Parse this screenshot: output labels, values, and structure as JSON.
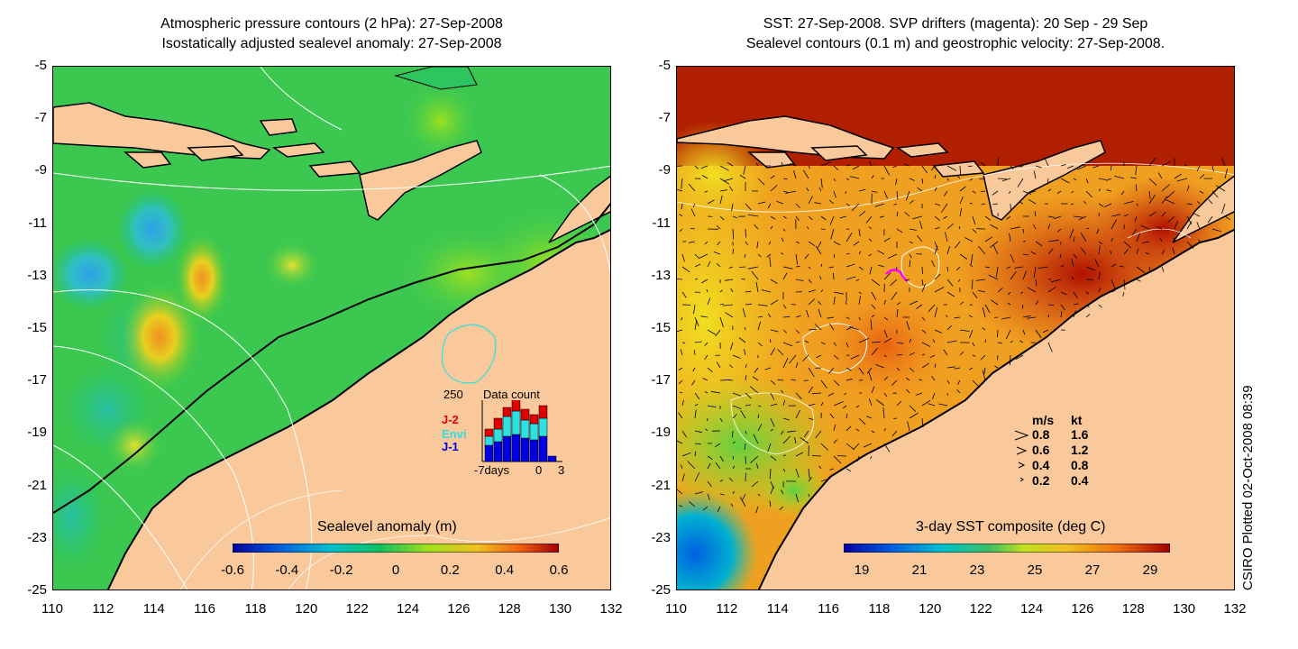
{
  "left_panel": {
    "title_line1": "Atmospheric pressure contours (2 hPa): 27-Sep-2008",
    "title_line2": "Isostatically adjusted sealevel anomaly: 27-Sep-2008",
    "colorbar_label": "Sealevel anomaly (m)",
    "colorbar_ticks": [
      "-0.6",
      "-0.4",
      "-0.2",
      "0",
      "0.2",
      "0.4",
      "0.6"
    ],
    "inset": {
      "top_value": "250",
      "title": "Data count",
      "x_left": "-7days",
      "x_mid": "0",
      "x_right": "3",
      "legend": [
        {
          "label": "J-2",
          "color": "#e00000"
        },
        {
          "label": "Envi",
          "color": "#30e0e0"
        },
        {
          "label": "J-1",
          "color": "#0000e0"
        }
      ]
    }
  },
  "right_panel": {
    "title_line1": "SST: 27-Sep-2008. SVP drifters (magenta): 20 Sep - 29 Sep",
    "title_line2": "Sealevel contours (0.1 m) and geostrophic velocity: 27-Sep-2008.",
    "colorbar_label": "3-day SST composite (deg C)",
    "colorbar_ticks": [
      "19",
      "21",
      "23",
      "25",
      "27",
      "29"
    ],
    "velocity_legend": {
      "header_ms": "m/s",
      "header_kt": "kt",
      "rows": [
        {
          "ms": "0.8",
          "kt": "1.6"
        },
        {
          "ms": "0.6",
          "kt": "1.2"
        },
        {
          "ms": "0.4",
          "kt": "0.8"
        },
        {
          "ms": "0.2",
          "kt": "0.4"
        }
      ]
    }
  },
  "axes": {
    "y_ticks": [
      "-5",
      "-7",
      "-9",
      "-11",
      "-13",
      "-15",
      "-17",
      "-19",
      "-21",
      "-23",
      "-25"
    ],
    "x_ticks": [
      "110",
      "112",
      "114",
      "116",
      "118",
      "120",
      "122",
      "124",
      "126",
      "128",
      "130",
      "132"
    ]
  },
  "credit": "CSIRO Plotted 02-Oct-2008 08:39",
  "colors": {
    "land": "#f9c99c",
    "sla_low": "#0000a0",
    "sla_mid": "#10c060",
    "sla_high": "#a00000",
    "sst_low": "#0000a0",
    "sst_high": "#a00000",
    "drifter": "#ff00ff"
  }
}
